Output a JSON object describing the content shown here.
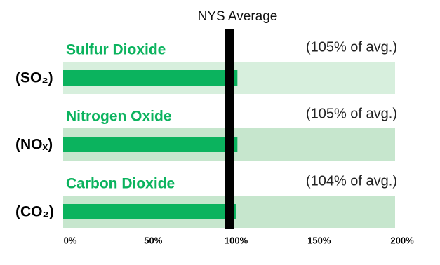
{
  "chart_data": {
    "type": "bar",
    "orientation": "horizontal",
    "categories": [
      "Sulfur Dioxide",
      "Nitrogen Oxide",
      "Carbon Dioxide"
    ],
    "formulas": [
      "(SO₂)",
      "(NOₓ)",
      "(CO₂)"
    ],
    "values": [
      105,
      105,
      104
    ],
    "value_labels": [
      "(105% of avg.)",
      "(105% of avg.)",
      "(104% of avg.)"
    ],
    "color": "#0bb35e",
    "track_colors": [
      "#d7efdd",
      "#c6e6cd",
      "#c6e6cd"
    ],
    "xlim": [
      0,
      200
    ],
    "xticks": [
      {
        "value": 0,
        "label": "0%"
      },
      {
        "value": 50,
        "label": "50%"
      },
      {
        "value": 100,
        "label": "100%"
      },
      {
        "value": 150,
        "label": "150%"
      },
      {
        "value": 200,
        "label": "200%"
      }
    ],
    "reference": {
      "label": "NYS Average",
      "value": 100,
      "color": "#000000"
    }
  }
}
